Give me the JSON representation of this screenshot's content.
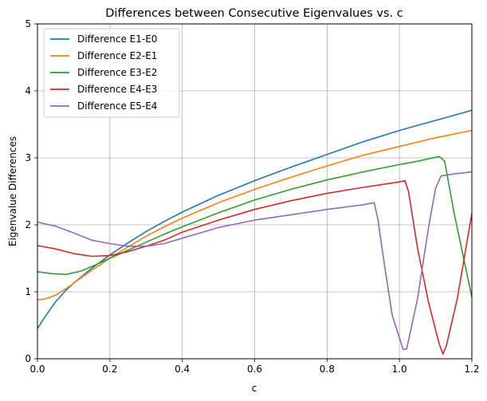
{
  "chart_data": {
    "type": "line",
    "title": "Differences between Consecutive Eigenvalues vs. c",
    "xlabel": "c",
    "ylabel": "Eigenvalue Differences",
    "xlim": [
      0,
      1.2
    ],
    "ylim": [
      0,
      5
    ],
    "xticks": [
      "0.0",
      "0.2",
      "0.4",
      "0.6",
      "0.8",
      "1.0",
      "1.2"
    ],
    "yticks": [
      "0",
      "1",
      "2",
      "3",
      "4",
      "5"
    ],
    "grid": true,
    "legend_position": "top-left",
    "series": [
      {
        "name": "Difference E1-E0",
        "color": "#1f77b4",
        "points": [
          [
            0,
            0.45
          ],
          [
            0.02,
            0.62
          ],
          [
            0.05,
            0.85
          ],
          [
            0.08,
            1.03
          ],
          [
            0.1,
            1.13
          ],
          [
            0.15,
            1.35
          ],
          [
            0.2,
            1.55
          ],
          [
            0.25,
            1.73
          ],
          [
            0.3,
            1.9
          ],
          [
            0.35,
            2.05
          ],
          [
            0.4,
            2.19
          ],
          [
            0.5,
            2.44
          ],
          [
            0.6,
            2.66
          ],
          [
            0.7,
            2.86
          ],
          [
            0.8,
            3.05
          ],
          [
            0.9,
            3.24
          ],
          [
            1.0,
            3.41
          ],
          [
            1.1,
            3.56
          ],
          [
            1.2,
            3.71
          ]
        ]
      },
      {
        "name": "Difference E2-E1",
        "color": "#ff7f0e",
        "points": [
          [
            0,
            0.88
          ],
          [
            0.02,
            0.89
          ],
          [
            0.05,
            0.95
          ],
          [
            0.08,
            1.05
          ],
          [
            0.1,
            1.13
          ],
          [
            0.15,
            1.32
          ],
          [
            0.2,
            1.5
          ],
          [
            0.25,
            1.67
          ],
          [
            0.3,
            1.83
          ],
          [
            0.35,
            1.97
          ],
          [
            0.4,
            2.1
          ],
          [
            0.5,
            2.33
          ],
          [
            0.6,
            2.53
          ],
          [
            0.7,
            2.71
          ],
          [
            0.8,
            2.88
          ],
          [
            0.9,
            3.04
          ],
          [
            1.0,
            3.17
          ],
          [
            1.1,
            3.3
          ],
          [
            1.2,
            3.41
          ]
        ]
      },
      {
        "name": "Difference E3-E2",
        "color": "#2ca02c",
        "points": [
          [
            0,
            1.3
          ],
          [
            0.04,
            1.27
          ],
          [
            0.08,
            1.26
          ],
          [
            0.12,
            1.31
          ],
          [
            0.16,
            1.4
          ],
          [
            0.2,
            1.5
          ],
          [
            0.25,
            1.62
          ],
          [
            0.3,
            1.74
          ],
          [
            0.35,
            1.86
          ],
          [
            0.4,
            1.97
          ],
          [
            0.5,
            2.18
          ],
          [
            0.6,
            2.37
          ],
          [
            0.7,
            2.53
          ],
          [
            0.8,
            2.67
          ],
          [
            0.9,
            2.79
          ],
          [
            1.0,
            2.9
          ],
          [
            1.05,
            2.95
          ],
          [
            1.11,
            3.02
          ],
          [
            1.125,
            2.95
          ],
          [
            1.15,
            2.2
          ],
          [
            1.2,
            0.92
          ]
        ]
      },
      {
        "name": "Difference E4-E3",
        "color": "#d62728",
        "points": [
          [
            0,
            1.69
          ],
          [
            0.05,
            1.64
          ],
          [
            0.1,
            1.57
          ],
          [
            0.15,
            1.53
          ],
          [
            0.2,
            1.54
          ],
          [
            0.25,
            1.6
          ],
          [
            0.3,
            1.68
          ],
          [
            0.35,
            1.77
          ],
          [
            0.4,
            1.89
          ],
          [
            0.5,
            2.07
          ],
          [
            0.6,
            2.23
          ],
          [
            0.7,
            2.36
          ],
          [
            0.8,
            2.47
          ],
          [
            0.9,
            2.56
          ],
          [
            1.0,
            2.64
          ],
          [
            1.015,
            2.66
          ],
          [
            1.025,
            2.5
          ],
          [
            1.05,
            1.65
          ],
          [
            1.08,
            0.85
          ],
          [
            1.11,
            0.22
          ],
          [
            1.12,
            0.07
          ],
          [
            1.13,
            0.2
          ],
          [
            1.16,
            0.9
          ],
          [
            1.2,
            2.17
          ]
        ]
      },
      {
        "name": "Difference E5-E4",
        "color": "#9467bd",
        "points": [
          [
            0,
            2.04
          ],
          [
            0.05,
            1.98
          ],
          [
            0.1,
            1.88
          ],
          [
            0.15,
            1.77
          ],
          [
            0.2,
            1.72
          ],
          [
            0.25,
            1.68
          ],
          [
            0.3,
            1.68
          ],
          [
            0.35,
            1.72
          ],
          [
            0.4,
            1.8
          ],
          [
            0.5,
            1.96
          ],
          [
            0.6,
            2.07
          ],
          [
            0.7,
            2.15
          ],
          [
            0.8,
            2.23
          ],
          [
            0.9,
            2.3
          ],
          [
            0.93,
            2.33
          ],
          [
            0.94,
            2.1
          ],
          [
            0.96,
            1.35
          ],
          [
            0.98,
            0.65
          ],
          [
            1.01,
            0.14
          ],
          [
            1.02,
            0.15
          ],
          [
            1.05,
            0.9
          ],
          [
            1.08,
            1.95
          ],
          [
            1.1,
            2.55
          ],
          [
            1.115,
            2.73
          ],
          [
            1.15,
            2.76
          ],
          [
            1.2,
            2.79
          ]
        ]
      }
    ]
  }
}
